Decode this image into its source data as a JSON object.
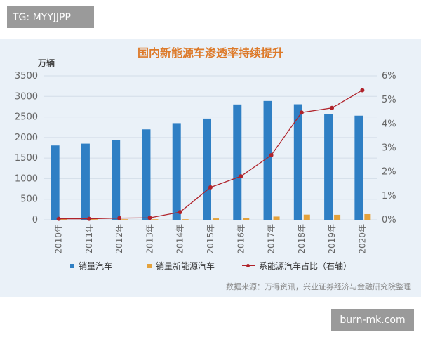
{
  "tag": "TG: MYYJJPP",
  "watermark": "burn-mk.com",
  "source": "数据来源：万得资讯，兴业证券经济与金融研究院整理",
  "colors": {
    "panel_bg": "#eaf1f8",
    "bar_sales": "#2f7fc4",
    "bar_nev": "#e4a23c",
    "line": "#b0222a",
    "title": "#dd7a2a"
  },
  "chart_data": {
    "type": "bar",
    "title": "国内新能源车渗透率持续提升",
    "ylabel": "万辆",
    "categories": [
      "2010年",
      "2011年",
      "2012年",
      "2013年",
      "2014年",
      "2015年",
      "2016年",
      "2017年",
      "2018年",
      "2019年",
      "2020年"
    ],
    "ylim": [
      0,
      3500
    ],
    "yticks": [
      "0",
      "500",
      "1000",
      "1500",
      "2000",
      "2500",
      "3000",
      "3500"
    ],
    "y2lim": [
      0,
      6
    ],
    "y2ticks": [
      "0%",
      "1%",
      "2%",
      "3%",
      "4%",
      "5%",
      "6%"
    ],
    "series": [
      {
        "name": "销量汽车",
        "kind": "bar",
        "axis": "left",
        "values": [
          1806,
          1851,
          1931,
          2198,
          2349,
          2460,
          2803,
          2888,
          2808,
          2577,
          2531
        ]
      },
      {
        "name": "销量新能源汽车",
        "kind": "bar",
        "axis": "left",
        "values": [
          0.7,
          0.8,
          1.3,
          1.8,
          7.5,
          33,
          51,
          78,
          125,
          121,
          137
        ]
      },
      {
        "name": "系能源汽车占比（右轴）",
        "kind": "line",
        "axis": "right",
        "values": [
          0.04,
          0.04,
          0.07,
          0.08,
          0.32,
          1.35,
          1.81,
          2.69,
          4.47,
          4.66,
          5.4
        ]
      }
    ],
    "legend": "bottom",
    "grid": true
  }
}
